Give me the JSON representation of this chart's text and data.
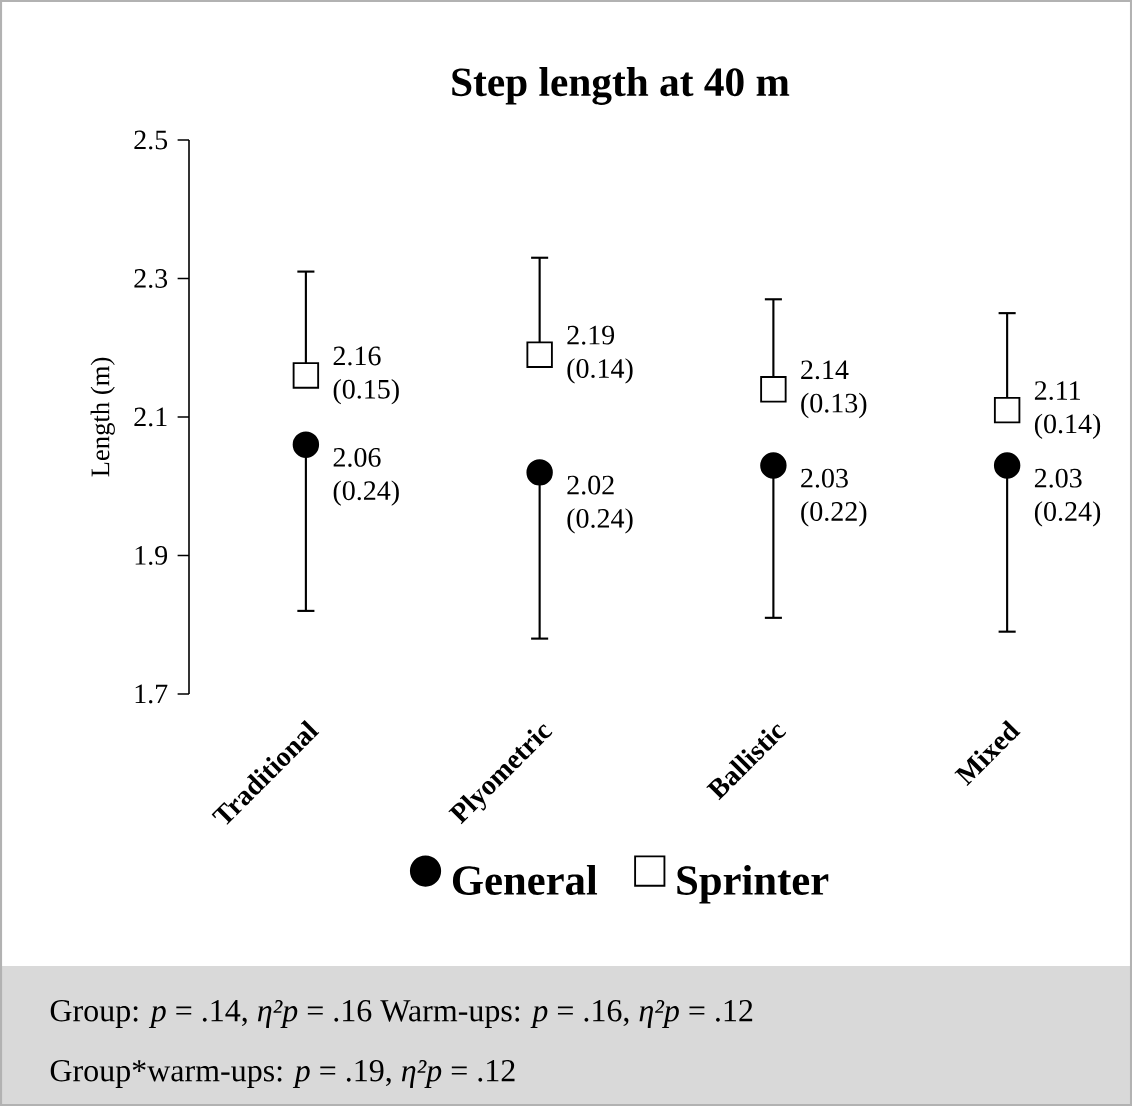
{
  "chart_data": {
    "type": "scatter",
    "title": "Step length at 40 m",
    "ylabel": "Length (m)",
    "categories": [
      "Traditional",
      "Plyometric",
      "Ballistic",
      "Mixed"
    ],
    "series": [
      {
        "name": "General",
        "color": "#000000",
        "marker": "circle",
        "values": [
          2.06,
          2.02,
          2.03,
          2.03
        ],
        "errors": [
          [
            1.82,
            2.06
          ],
          [
            1.78,
            2.02
          ],
          [
            1.81,
            2.03
          ],
          [
            1.79,
            2.03
          ]
        ],
        "value_labels": [
          "2.06 (0.24)",
          "2.02 (0.24)",
          "2.03 (0.22)",
          "2.03 (0.24)"
        ]
      },
      {
        "name": "Sprinter",
        "color": "#000000",
        "marker": "square",
        "values": [
          2.16,
          2.19,
          2.14,
          2.11
        ],
        "errors": [
          [
            2.16,
            2.31
          ],
          [
            2.19,
            2.33
          ],
          [
            2.14,
            2.27
          ],
          [
            2.11,
            2.25
          ]
        ],
        "value_labels": [
          "2.16 (0.15)",
          "2.19 (0.14)",
          "2.14 (0.13)",
          "2.11 (0.14)"
        ]
      }
    ],
    "ylim": [
      1.7,
      2.5
    ],
    "yticks": [
      1.7,
      1.9,
      2.1,
      2.3,
      2.5
    ],
    "grid": false,
    "legend": "bottom",
    "annotations": [
      "Group: *p* = .14, *η²p* = .16   Warm-ups: *p* = .16, *η²p* = .12",
      "Group*warm-ups: *p* = .19, *η²p* = .12"
    ]
  }
}
